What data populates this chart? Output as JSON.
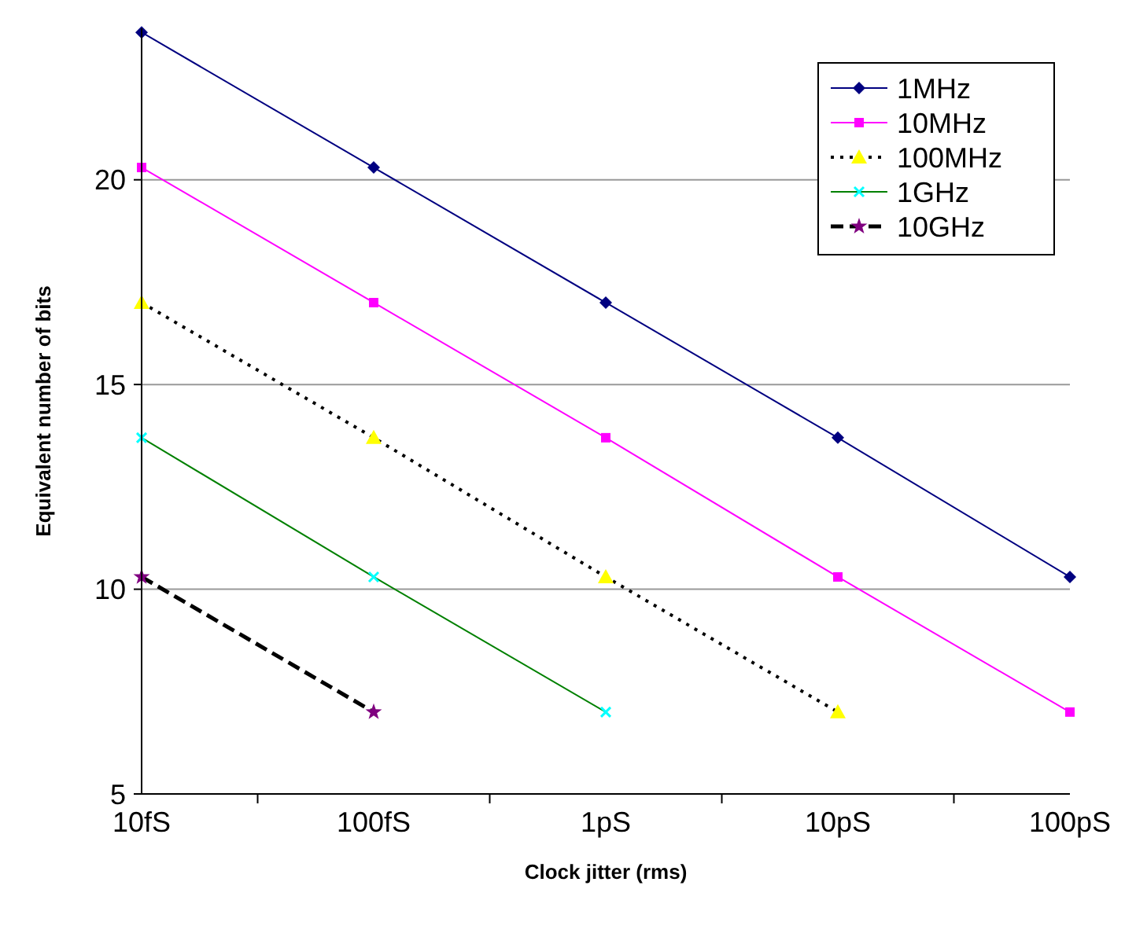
{
  "chart_data": {
    "type": "line",
    "xlabel": "Clock jitter (rms)",
    "ylabel": "Equivalent number of bits",
    "categories": [
      "10fS",
      "100fS",
      "1pS",
      "10pS",
      "100pS"
    ],
    "ylim": [
      5,
      23.7
    ],
    "yticks": [
      5,
      10,
      15,
      20
    ],
    "grid": "y",
    "legend": "top right",
    "series": [
      {
        "name": "1MHz",
        "color": "#000080",
        "marker": "diamond",
        "line_style": "solid",
        "values": [
          23.6,
          20.3,
          17.0,
          13.7,
          10.3
        ]
      },
      {
        "name": "10MHz",
        "color": "#ff00ff",
        "marker": "square",
        "line_style": "solid",
        "values": [
          20.3,
          17.0,
          13.7,
          10.3,
          7.0
        ]
      },
      {
        "name": "100MHz",
        "color": "#000000",
        "colors": [
          "#ffff00",
          "#ffff00",
          "#ffff00",
          "#ffff00",
          null
        ],
        "marker": "triangle",
        "line_style": "dotted",
        "values": [
          17.0,
          13.7,
          10.3,
          7.0,
          null
        ]
      },
      {
        "name": "1GHz",
        "color": "#008000",
        "colors": [
          "#00ffff",
          "#00ffff",
          "#00ffff",
          null,
          null
        ],
        "marker": "cross",
        "line_style": "solid",
        "values": [
          13.7,
          10.3,
          7.0,
          null,
          null
        ]
      },
      {
        "name": "10GHz",
        "color": "#000000",
        "colors": [
          "#800080",
          "#800080",
          null,
          null,
          null
        ],
        "marker": "star",
        "line_style": "dashed",
        "values": [
          10.3,
          7.0,
          null,
          null,
          null
        ]
      }
    ]
  }
}
